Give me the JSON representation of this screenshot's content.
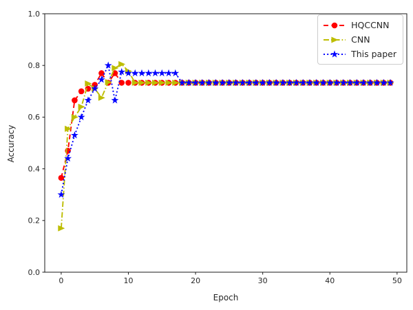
{
  "figure": {
    "background": "#ffffff",
    "spine_color": "#1a1a1a"
  },
  "chart_data": {
    "type": "line",
    "title": "",
    "xlabel": "Epoch",
    "ylabel": "Accuracy",
    "grid": false,
    "legend_position": "upper right",
    "xlim": [
      -2.45,
      51.45
    ],
    "ylim": [
      0.0,
      1.0
    ],
    "xticks": {
      "values": [
        0,
        10,
        20,
        30,
        40,
        50
      ],
      "labels": [
        "0",
        "10",
        "20",
        "30",
        "40",
        "50"
      ]
    },
    "yticks": {
      "values": [
        0.0,
        0.2,
        0.4,
        0.6,
        0.8,
        1.0
      ],
      "labels": [
        "0.0",
        "0.2",
        "0.4",
        "0.6",
        "0.8",
        "1.0"
      ]
    },
    "x": [
      0,
      1,
      2,
      3,
      4,
      5,
      6,
      7,
      8,
      9,
      10,
      11,
      12,
      13,
      14,
      15,
      16,
      17,
      18,
      19,
      20,
      21,
      22,
      23,
      24,
      25,
      26,
      27,
      28,
      29,
      30,
      31,
      32,
      33,
      34,
      35,
      36,
      37,
      38,
      39,
      40,
      41,
      42,
      43,
      44,
      45,
      46,
      47,
      48,
      49
    ],
    "series": [
      {
        "name": "HQCCNN",
        "color": "#ff0000",
        "linestyle": "dashed",
        "marker": "circle",
        "values": [
          0.365,
          0.47,
          0.665,
          0.7,
          0.71,
          0.725,
          0.77,
          0.733,
          0.77,
          0.733,
          0.733,
          0.733,
          0.733,
          0.733,
          0.733,
          0.733,
          0.733,
          0.733,
          0.733,
          0.733,
          0.733,
          0.733,
          0.733,
          0.733,
          0.733,
          0.733,
          0.733,
          0.733,
          0.733,
          0.733,
          0.733,
          0.733,
          0.733,
          0.733,
          0.733,
          0.733,
          0.733,
          0.733,
          0.733,
          0.733,
          0.733,
          0.733,
          0.733,
          0.733,
          0.733,
          0.733,
          0.733,
          0.733,
          0.733,
          0.733
        ]
      },
      {
        "name": "CNN",
        "color": "#bdbd00",
        "linestyle": "dashdot",
        "marker": "triangle-right",
        "values": [
          0.17,
          0.555,
          0.6,
          0.64,
          0.73,
          0.71,
          0.675,
          0.735,
          0.79,
          0.805,
          0.778,
          0.733,
          0.733,
          0.733,
          0.733,
          0.733,
          0.733,
          0.733,
          0.733,
          0.733,
          0.733,
          0.733,
          0.733,
          0.733,
          0.733,
          0.733,
          0.733,
          0.733,
          0.733,
          0.733,
          0.733,
          0.733,
          0.733,
          0.733,
          0.733,
          0.733,
          0.733,
          0.733,
          0.733,
          0.733,
          0.733,
          0.733,
          0.733,
          0.733,
          0.733,
          0.733,
          0.733,
          0.733,
          0.733,
          0.733
        ]
      },
      {
        "name": "This paper",
        "color": "#0000ff",
        "linestyle": "dotted",
        "marker": "star",
        "values": [
          0.3,
          0.44,
          0.53,
          0.6,
          0.665,
          0.71,
          0.745,
          0.8,
          0.665,
          0.775,
          0.77,
          0.77,
          0.77,
          0.77,
          0.77,
          0.77,
          0.77,
          0.77,
          0.733,
          0.733,
          0.733,
          0.733,
          0.733,
          0.733,
          0.733,
          0.733,
          0.733,
          0.733,
          0.733,
          0.733,
          0.733,
          0.733,
          0.733,
          0.733,
          0.733,
          0.733,
          0.733,
          0.733,
          0.733,
          0.733,
          0.733,
          0.733,
          0.733,
          0.733,
          0.733,
          0.733,
          0.733,
          0.733,
          0.733,
          0.733
        ]
      }
    ]
  }
}
